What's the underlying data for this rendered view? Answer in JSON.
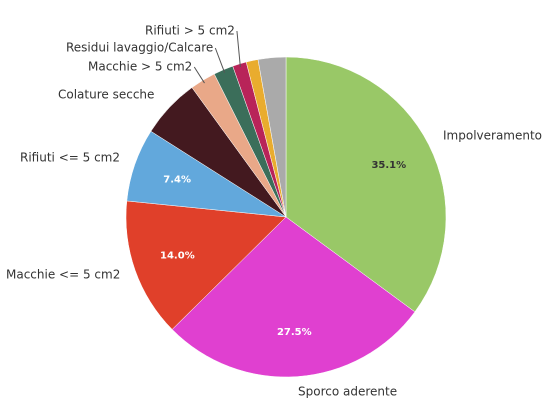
{
  "chart_data": {
    "type": "pie",
    "categories": [
      "Impolveramento",
      "Sporco aderente",
      "Macchie <= 5 cm2",
      "Rifiuti <= 5 cm2",
      "Colature secche",
      "Macchie > 5 cm2",
      "Residui lavaggio/Calcare",
      "Rifiuti > 5 cm2",
      null,
      null
    ],
    "values": [
      35.1,
      27.5,
      14.0,
      7.4,
      6.0,
      2.6,
      2.0,
      1.4,
      1.2,
      2.8
    ],
    "value_labels": [
      "35.1%",
      "27.5%",
      "14.0%",
      "7.4%",
      null,
      null,
      null,
      null,
      null,
      null
    ],
    "colors": [
      "#99c867",
      "#e040d0",
      "#e0402a",
      "#62a8dc",
      "#43191f",
      "#e9a888",
      "#3b6e5a",
      "#b82459",
      "#e9ac2e",
      "#aaaaaa"
    ]
  }
}
